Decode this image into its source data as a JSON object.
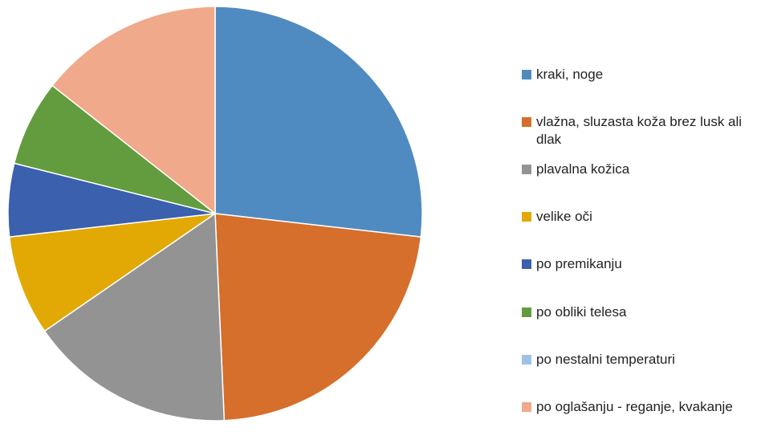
{
  "chart_data": {
    "type": "pie",
    "categories": [
      "kraki, noge",
      "vlažna, sluzasta koža brez lusk ali dlak",
      "plavalna kožica",
      "velike oči",
      "po premikanju",
      "po obliki telesa",
      "po nestalni temperaturi",
      "po oglašanju - reganje, kvakanje"
    ],
    "values": [
      26.8,
      22.5,
      16.1,
      7.8,
      5.7,
      6.7,
      0,
      14.4
    ],
    "colors": [
      "#4f8bc0",
      "#d56f2b",
      "#939393",
      "#e2a905",
      "#3a60ae",
      "#629c3e",
      "#9ec2e6",
      "#f0a98a"
    ],
    "legend": "right"
  }
}
